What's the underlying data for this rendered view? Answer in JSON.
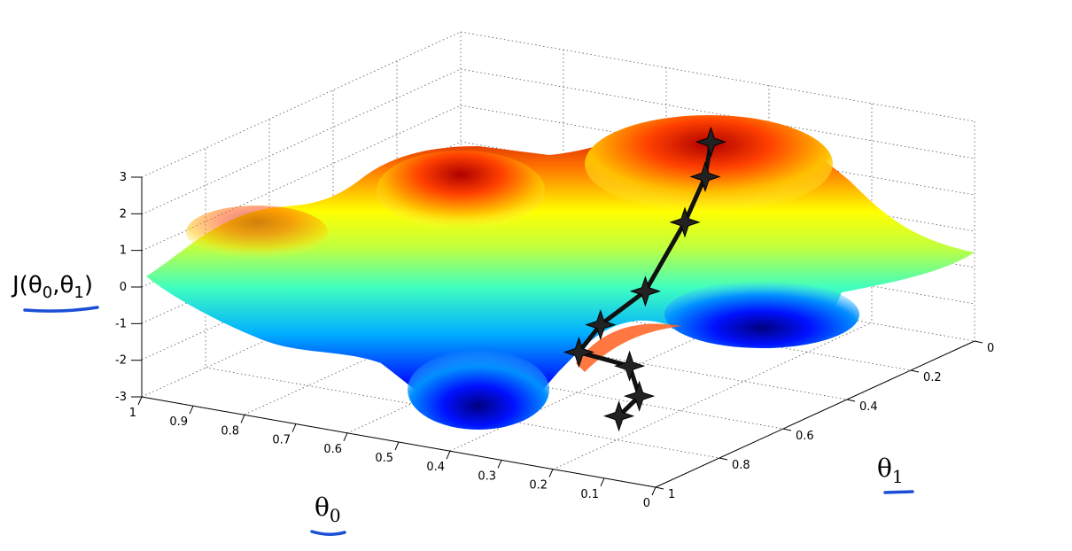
{
  "chart_data": {
    "type": "surface",
    "title": "",
    "xlabel_text": "θ",
    "xlabel_sub": "0",
    "ylabel_text": "θ",
    "ylabel_sub": "1",
    "zlabel_parts": [
      "J(",
      "θ",
      "0",
      ",",
      "θ",
      "1",
      ")"
    ],
    "x_ticks": [
      "1",
      "0.9",
      "0.8",
      "0.7",
      "0.6",
      "0.5",
      "0.4",
      "0.3",
      "0.2",
      "0.1",
      "0"
    ],
    "y_ticks": [
      "0",
      "0.2",
      "0.4",
      "0.6",
      "0.8",
      "1"
    ],
    "z_ticks": [
      "3",
      "2",
      "1",
      "0",
      "-1",
      "-2",
      "-3"
    ],
    "xlim": [
      0,
      1
    ],
    "ylim": [
      0,
      1
    ],
    "zlim": [
      -3,
      3
    ],
    "grid": true,
    "colormap": "jet",
    "descent_path_theta0": [
      0.42,
      0.4,
      0.39,
      0.38,
      0.43,
      0.41,
      0.33,
      0.28,
      0.27
    ],
    "descent_path_theta1": [
      0.15,
      0.2,
      0.28,
      0.42,
      0.48,
      0.58,
      0.55,
      0.6,
      0.68
    ],
    "descent_path_J": [
      2.0,
      1.3,
      0.4,
      -0.9,
      -1.7,
      -2.0,
      -2.3,
      -2.8,
      -3.0
    ]
  },
  "annotations": {
    "underline_color": "#1a4fd6",
    "path_color": "#111111"
  }
}
